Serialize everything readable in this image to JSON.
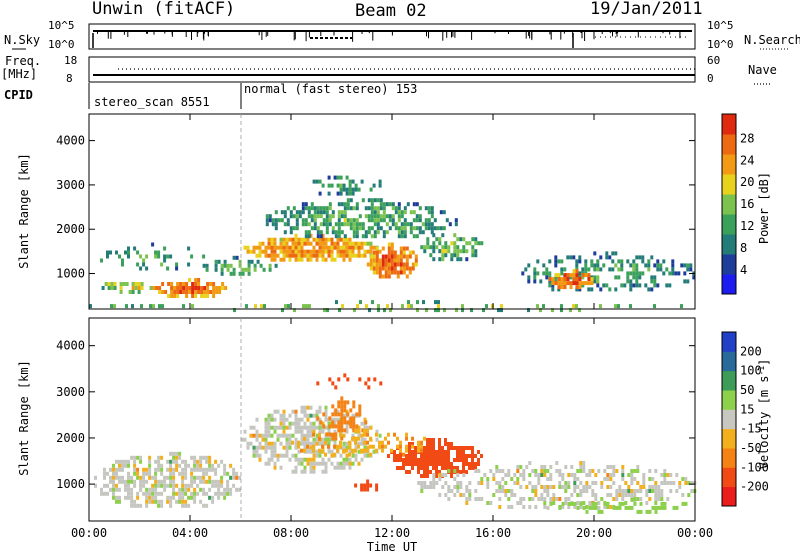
{
  "header": {
    "station": "Unwin (fitACF)",
    "beam": "Beam 02",
    "date": "19/Jan/2011"
  },
  "status_panels": {
    "nsky": {
      "label": "N.Sky",
      "ticks": [
        "10^5",
        "10^0"
      ],
      "right_label": "N.Search",
      "right_ticks": [
        "10^5",
        "10^0"
      ]
    },
    "freq": {
      "label_top": "Freq.",
      "label_unit": "[MHz]",
      "ticks": [
        "18",
        "8"
      ],
      "right_label": "Nave",
      "right_ticks": [
        "60",
        "0"
      ]
    },
    "cpid": {
      "label": "CPID",
      "programs": [
        {
          "text": "stereo_scan 8551",
          "start_hour": 0
        },
        {
          "text": "normal (fast stereo) 153",
          "start_hour": 6
        }
      ]
    }
  },
  "colors": {
    "power_scale": [
      "#1c1cf0",
      "#1e3c9a",
      "#247c78",
      "#3aa05a",
      "#7cc24e",
      "#e8d21e",
      "#f29a14",
      "#ee6a12",
      "#e02a10"
    ],
    "velocity_scale": [
      "#ea1c1c",
      "#f24a14",
      "#f48214",
      "#f2b01e",
      "#c8c8c0",
      "#8cd04c",
      "#3c9c58",
      "#2a6a9a",
      "#2040c8"
    ],
    "grey": "#c6c6c0"
  },
  "chart_data": [
    {
      "type": "heatmap",
      "title": "",
      "xlabel": "Time UT",
      "ylabel": "Slant Range [km]",
      "xlim": [
        0,
        24
      ],
      "ylim": [
        200,
        4600
      ],
      "x_ticks": [
        "00:00",
        "04:00",
        "08:00",
        "12:00",
        "16:00",
        "20:00",
        "00:00"
      ],
      "y_ticks": [
        "1000",
        "2000",
        "3000",
        "4000"
      ],
      "y_tick_values": [
        1000,
        2000,
        3000,
        4000
      ],
      "colorbar": {
        "label": "Power [dB]",
        "ticks": [
          "4",
          "8",
          "12",
          "16",
          "20",
          "24",
          "28"
        ],
        "range": [
          0,
          32
        ]
      },
      "regions": [
        {
          "t0": 0.2,
          "t1": 4.5,
          "r0": 1100,
          "r1": 1700,
          "value": 8,
          "density": 0.3
        },
        {
          "t0": 2.5,
          "t1": 5.5,
          "r0": 500,
          "r1": 900,
          "value": 22,
          "density": 0.9
        },
        {
          "t0": 0.5,
          "t1": 2.5,
          "r0": 600,
          "r1": 900,
          "value": 14,
          "density": 0.7
        },
        {
          "t0": 4.5,
          "t1": 7.5,
          "r0": 1000,
          "r1": 1400,
          "value": 9,
          "density": 0.5
        },
        {
          "t0": 6.0,
          "t1": 11.5,
          "r0": 1300,
          "r1": 1900,
          "value": 20,
          "density": 0.9
        },
        {
          "t0": 7.0,
          "t1": 14.5,
          "r0": 1800,
          "r1": 2700,
          "value": 9,
          "density": 0.7
        },
        {
          "t0": 8.5,
          "t1": 11.5,
          "r0": 2800,
          "r1": 3300,
          "value": 7,
          "density": 0.4
        },
        {
          "t0": 11.0,
          "t1": 13.0,
          "r0": 900,
          "r1": 1700,
          "value": 22,
          "density": 0.9
        },
        {
          "t0": 13.0,
          "t1": 15.5,
          "r0": 1300,
          "r1": 2000,
          "value": 10,
          "density": 0.6
        },
        {
          "t0": 17.0,
          "t1": 24.0,
          "r0": 600,
          "r1": 1500,
          "value": 7,
          "density": 0.5
        },
        {
          "t0": 18.2,
          "t1": 20.0,
          "r0": 700,
          "r1": 1100,
          "value": 23,
          "density": 0.9
        },
        {
          "t0": 0.0,
          "t1": 24.0,
          "r0": 200,
          "r1": 400,
          "value": 12,
          "density": 0.25
        }
      ]
    },
    {
      "type": "heatmap",
      "title": "",
      "xlabel": "Time UT",
      "ylabel": "Slant Range [km]",
      "xlim": [
        0,
        24
      ],
      "ylim": [
        200,
        4600
      ],
      "x_ticks": [
        "00:00",
        "04:00",
        "08:00",
        "12:00",
        "16:00",
        "20:00",
        "00:00"
      ],
      "y_ticks": [
        "1000",
        "2000",
        "3000",
        "4000"
      ],
      "y_tick_values": [
        1000,
        2000,
        3000,
        4000
      ],
      "colorbar": {
        "label": "Velocity [m s^-1]",
        "ticks": [
          "200",
          "100",
          "50",
          "15",
          "-15",
          "-50",
          "-100",
          "-200"
        ],
        "range": [
          -250,
          250
        ]
      },
      "regions": [
        {
          "t0": 0.2,
          "t1": 6.0,
          "r0": 500,
          "r1": 1700,
          "value": 0,
          "density": 0.7
        },
        {
          "t0": 6.0,
          "t1": 11.5,
          "r0": 1300,
          "r1": 2700,
          "value": 0,
          "density": 0.7
        },
        {
          "t0": 9.0,
          "t1": 11.0,
          "r0": 2000,
          "r1": 2900,
          "value": -70,
          "density": 0.5
        },
        {
          "t0": 11.8,
          "t1": 15.5,
          "r0": 1200,
          "r1": 2000,
          "value": -160,
          "density": 0.85
        },
        {
          "t0": 8.0,
          "t1": 13.5,
          "r0": 1600,
          "r1": 2200,
          "value": -40,
          "density": 0.4
        },
        {
          "t0": 13.0,
          "t1": 24.0,
          "r0": 500,
          "r1": 1500,
          "value": 0,
          "density": 0.5
        },
        {
          "t0": 10.5,
          "t1": 11.5,
          "r0": 900,
          "r1": 1100,
          "value": -150,
          "density": 0.8
        },
        {
          "t0": 18.0,
          "t1": 24.0,
          "r0": 400,
          "r1": 700,
          "value": 30,
          "density": 0.4
        },
        {
          "t0": 9.0,
          "t1": 11.5,
          "r0": 3100,
          "r1": 3400,
          "value": -120,
          "density": 0.3
        }
      ]
    }
  ]
}
